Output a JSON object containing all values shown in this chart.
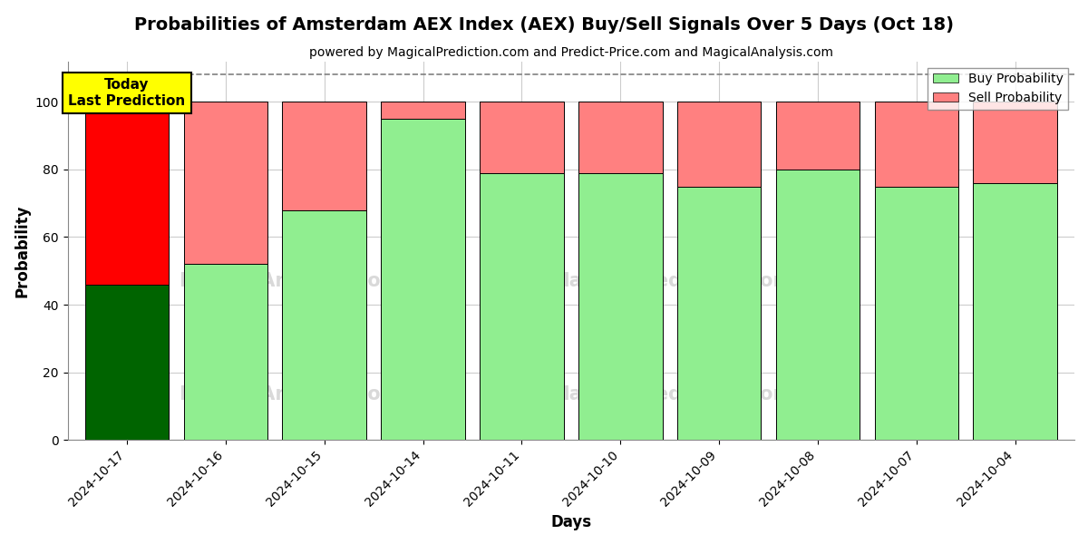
{
  "title": "Probabilities of Amsterdam AEX Index (AEX) Buy/Sell Signals Over 5 Days (Oct 18)",
  "subtitle": "powered by MagicalPrediction.com and Predict-Price.com and MagicalAnalysis.com",
  "xlabel": "Days",
  "ylabel": "Probability",
  "dates": [
    "2024-10-17",
    "2024-10-16",
    "2024-10-15",
    "2024-10-14",
    "2024-10-11",
    "2024-10-10",
    "2024-10-09",
    "2024-10-08",
    "2024-10-07",
    "2024-10-04"
  ],
  "buy_values": [
    46,
    52,
    68,
    95,
    79,
    79,
    75,
    80,
    75,
    76
  ],
  "sell_values": [
    54,
    48,
    32,
    5,
    21,
    21,
    25,
    20,
    25,
    24
  ],
  "buy_colors": [
    "#006400",
    "#90EE90",
    "#90EE90",
    "#90EE90",
    "#90EE90",
    "#90EE90",
    "#90EE90",
    "#90EE90",
    "#90EE90",
    "#90EE90"
  ],
  "sell_colors": [
    "#FF0000",
    "#FF8080",
    "#FF8080",
    "#FF8080",
    "#FF8080",
    "#FF8080",
    "#FF8080",
    "#FF8080",
    "#FF8080",
    "#FF8080"
  ],
  "ylim": [
    0,
    112
  ],
  "yticks": [
    0,
    20,
    40,
    60,
    80,
    100
  ],
  "dashed_line_y": 108,
  "today_box_text": "Today\nLast Prediction",
  "today_box_color": "#FFFF00",
  "legend_buy_label": "Buy Probability",
  "legend_sell_label": "Sell Probability",
  "legend_buy_color": "#90EE90",
  "legend_sell_color": "#FF8080",
  "background_color": "#FFFFFF",
  "grid_color": "#CCCCCC",
  "title_fontsize": 14,
  "subtitle_fontsize": 10,
  "axis_label_fontsize": 12,
  "bar_width": 0.85
}
